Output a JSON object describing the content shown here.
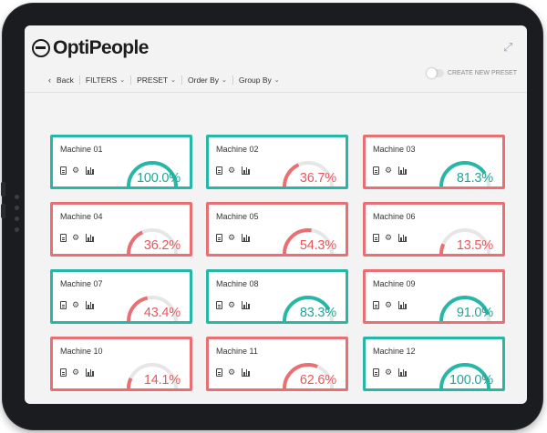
{
  "app": {
    "logo_text": "OptiPeople"
  },
  "toolbar": {
    "back": "Back",
    "filters": "FILTERS",
    "preset": "PRESET",
    "order_by": "Order By",
    "group_by": "Group By",
    "create_preset": "CREATE NEW PRESET"
  },
  "colors": {
    "good": "#27b7a6",
    "bad": "#ea6f73",
    "track": "#e6e6e6"
  },
  "machines": [
    {
      "name": "Machine 01",
      "percent": 100.0,
      "label": "100.0%",
      "status": "good"
    },
    {
      "name": "Machine 02",
      "percent": 36.7,
      "label": "36.7%",
      "status": "good"
    },
    {
      "name": "Machine 03",
      "percent": 81.3,
      "label": "81.3%",
      "status": "bad"
    },
    {
      "name": "Machine 04",
      "percent": 36.2,
      "label": "36.2%",
      "status": "bad"
    },
    {
      "name": "Machine 05",
      "percent": 54.3,
      "label": "54.3%",
      "status": "bad"
    },
    {
      "name": "Machine 06",
      "percent": 13.5,
      "label": "13.5%",
      "status": "bad"
    },
    {
      "name": "Machine 07",
      "percent": 43.4,
      "label": "43.4%",
      "status": "good"
    },
    {
      "name": "Machine 08",
      "percent": 83.3,
      "label": "83.3%",
      "status": "good"
    },
    {
      "name": "Machine 09",
      "percent": 91.0,
      "label": "91.0%",
      "status": "bad"
    },
    {
      "name": "Machine 10",
      "percent": 14.1,
      "label": "14.1%",
      "status": "bad"
    },
    {
      "name": "Machine 11",
      "percent": 62.6,
      "label": "62.6%",
      "status": "bad"
    },
    {
      "name": "Machine 12",
      "percent": 100.0,
      "label": "100.0%",
      "status": "good"
    }
  ]
}
